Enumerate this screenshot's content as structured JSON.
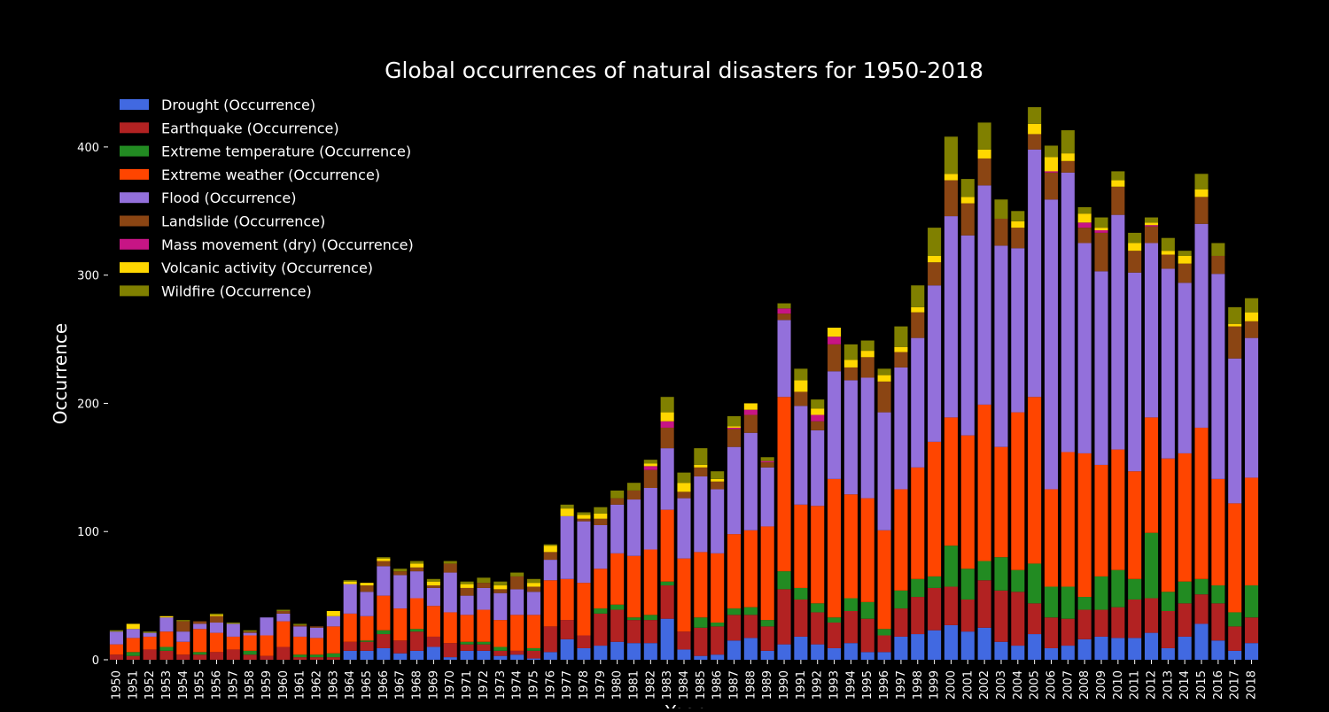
{
  "chart_data": {
    "type": "bar",
    "stacked": true,
    "title": "Global occurrences of natural disasters for 1950-2018",
    "xlabel": "Year",
    "ylabel": "Occurrence",
    "ylim": [
      0,
      440
    ],
    "yticks": [
      0,
      100,
      200,
      300,
      400
    ],
    "grid": false,
    "legend_position": "top-left",
    "background": "#000000",
    "categories": [
      "1950",
      "1951",
      "1952",
      "1953",
      "1954",
      "1955",
      "1956",
      "1957",
      "1958",
      "1959",
      "1960",
      "1961",
      "1962",
      "1963",
      "1964",
      "1965",
      "1966",
      "1967",
      "1968",
      "1969",
      "1970",
      "1971",
      "1972",
      "1973",
      "1974",
      "1975",
      "1976",
      "1977",
      "1978",
      "1979",
      "1980",
      "1981",
      "1982",
      "1983",
      "1984",
      "1985",
      "1986",
      "1987",
      "1988",
      "1989",
      "1990",
      "1991",
      "1992",
      "1993",
      "1994",
      "1995",
      "1996",
      "1997",
      "1998",
      "1999",
      "2000",
      "2001",
      "2002",
      "2003",
      "2004",
      "2005",
      "2006",
      "2007",
      "2008",
      "2009",
      "2010",
      "2011",
      "2012",
      "2013",
      "2014",
      "2015",
      "2016",
      "2017",
      "2018"
    ],
    "series": [
      {
        "name": "Drought (Occurrence)",
        "color": "#4169E1",
        "values": [
          0,
          0,
          0,
          0,
          0,
          0,
          0,
          0,
          0,
          0,
          0,
          0,
          0,
          0,
          7,
          7,
          9,
          5,
          7,
          10,
          2,
          7,
          7,
          3,
          4,
          1,
          6,
          16,
          9,
          11,
          14,
          13,
          13,
          32,
          8,
          3,
          4,
          15,
          17,
          7,
          12,
          18,
          12,
          9,
          13,
          6,
          6,
          18,
          20,
          23,
          27,
          22,
          25,
          14,
          11,
          20,
          9,
          11,
          16,
          18,
          17,
          17,
          21,
          9,
          18,
          28,
          15,
          7,
          13
        ]
      },
      {
        "name": "Earthquake (Occurrence)",
        "color": "#B22222",
        "values": [
          4,
          3,
          8,
          7,
          4,
          4,
          6,
          8,
          4,
          3,
          10,
          2,
          2,
          2,
          7,
          7,
          11,
          10,
          15,
          8,
          11,
          5,
          5,
          4,
          3,
          6,
          20,
          15,
          10,
          25,
          25,
          18,
          18,
          26,
          14,
          22,
          22,
          20,
          18,
          19,
          43,
          29,
          25,
          20,
          25,
          26,
          13,
          22,
          29,
          33,
          30,
          25,
          37,
          40,
          42,
          24,
          24,
          21,
          23,
          21,
          24,
          30,
          27,
          29,
          26,
          23,
          29,
          19,
          20
        ]
      },
      {
        "name": "Extreme temperature (Occurrence)",
        "color": "#228B22",
        "values": [
          0,
          3,
          0,
          3,
          0,
          2,
          0,
          0,
          3,
          0,
          0,
          2,
          2,
          3,
          0,
          1,
          3,
          0,
          2,
          0,
          0,
          2,
          2,
          3,
          0,
          2,
          0,
          0,
          0,
          4,
          4,
          2,
          4,
          3,
          0,
          8,
          3,
          5,
          6,
          5,
          14,
          9,
          7,
          4,
          10,
          13,
          5,
          14,
          14,
          9,
          32,
          24,
          15,
          26,
          17,
          31,
          24,
          25,
          10,
          26,
          29,
          16,
          51,
          15,
          17,
          12,
          14,
          11,
          25
        ]
      },
      {
        "name": "Extreme weather (Occurrence)",
        "color": "#FF4500",
        "values": [
          8,
          11,
          10,
          12,
          10,
          18,
          15,
          10,
          12,
          16,
          20,
          14,
          13,
          21,
          22,
          19,
          27,
          25,
          24,
          24,
          24,
          21,
          25,
          21,
          28,
          26,
          36,
          32,
          41,
          31,
          40,
          48,
          51,
          56,
          57,
          51,
          54,
          58,
          60,
          73,
          136,
          65,
          76,
          108,
          81,
          81,
          77,
          79,
          87,
          105,
          100,
          104,
          122,
          86,
          123,
          130,
          76,
          105,
          112,
          87,
          94,
          84,
          90,
          104,
          100,
          118,
          83,
          85,
          84
        ]
      },
      {
        "name": "Flood (Occurrence)",
        "color": "#9370DB",
        "values": [
          10,
          7,
          3,
          11,
          8,
          4,
          8,
          10,
          2,
          14,
          6,
          8,
          8,
          8,
          23,
          19,
          23,
          26,
          21,
          14,
          31,
          15,
          17,
          21,
          20,
          18,
          16,
          49,
          48,
          34,
          38,
          44,
          48,
          48,
          47,
          59,
          50,
          68,
          76,
          46,
          60,
          77,
          59,
          84,
          89,
          94,
          92,
          95,
          101,
          122,
          157,
          156,
          171,
          157,
          128,
          193,
          226,
          218,
          164,
          151,
          183,
          155,
          136,
          148,
          133,
          159,
          160,
          113,
          109
        ]
      },
      {
        "name": "Landslide (Occurrence)",
        "color": "#8B4513",
        "values": [
          0,
          0,
          0,
          0,
          8,
          2,
          5,
          0,
          1,
          0,
          2,
          1,
          1,
          0,
          0,
          5,
          4,
          3,
          3,
          2,
          7,
          6,
          4,
          3,
          10,
          4,
          6,
          0,
          2,
          5,
          5,
          7,
          14,
          16,
          5,
          7,
          6,
          14,
          14,
          4,
          5,
          11,
          7,
          21,
          10,
          16,
          24,
          12,
          20,
          18,
          28,
          25,
          21,
          21,
          16,
          12,
          21,
          9,
          12,
          30,
          22,
          17,
          13,
          11,
          15,
          21,
          14,
          25,
          13
        ]
      },
      {
        "name": "Mass movement (dry) (Occurrence)",
        "color": "#C71585",
        "values": [
          0,
          0,
          0,
          0,
          0,
          0,
          0,
          0,
          0,
          0,
          0,
          0,
          0,
          0,
          0,
          0,
          0,
          0,
          0,
          0,
          0,
          0,
          0,
          0,
          0,
          0,
          0,
          0,
          0,
          0,
          0,
          0,
          3,
          5,
          0,
          0,
          0,
          1,
          4,
          1,
          4,
          0,
          5,
          6,
          0,
          0,
          0,
          0,
          0,
          0,
          0,
          0,
          0,
          0,
          0,
          0,
          1,
          0,
          4,
          2,
          0,
          0,
          1,
          0,
          0,
          0,
          0,
          0,
          0
        ]
      },
      {
        "name": "Volcanic activity (Occurrence)",
        "color": "#FFD700",
        "values": [
          0,
          4,
          0,
          1,
          0,
          0,
          1,
          0,
          0,
          0,
          0,
          0,
          0,
          4,
          2,
          2,
          2,
          0,
          3,
          3,
          0,
          3,
          0,
          3,
          0,
          3,
          5,
          6,
          3,
          4,
          0,
          0,
          2,
          7,
          7,
          2,
          2,
          1,
          5,
          0,
          0,
          9,
          5,
          7,
          6,
          5,
          5,
          4,
          4,
          5,
          5,
          5,
          7,
          0,
          5,
          8,
          11,
          6,
          7,
          2,
          5,
          6,
          2,
          3,
          6,
          6,
          0,
          2,
          7
        ]
      },
      {
        "name": "Wildfire (Occurrence)",
        "color": "#808000",
        "values": [
          1,
          0,
          1,
          0,
          1,
          0,
          1,
          1,
          1,
          0,
          1,
          1,
          0,
          0,
          1,
          0,
          1,
          2,
          2,
          2,
          2,
          2,
          4,
          3,
          3,
          3,
          1,
          3,
          2,
          5,
          6,
          6,
          3,
          12,
          8,
          13,
          6,
          8,
          0,
          3,
          4,
          9,
          7,
          0,
          12,
          8,
          5,
          16,
          17,
          22,
          29,
          14,
          21,
          15,
          8,
          13,
          9,
          18,
          5,
          8,
          7,
          8,
          4,
          10,
          4,
          12,
          10,
          13,
          11
        ]
      }
    ]
  }
}
